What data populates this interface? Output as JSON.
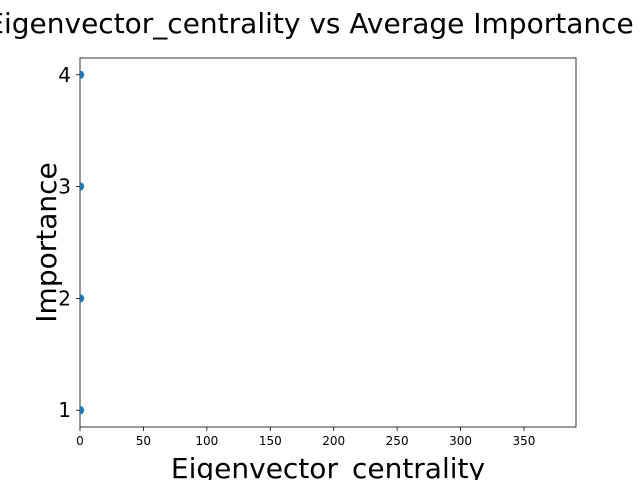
{
  "chart_data": {
    "type": "scatter",
    "title": "Eigenvector_centrality vs Average Importance",
    "xlabel": "Eigenvector_centrality",
    "ylabel": "Importance",
    "xlim": [
      0,
      391
    ],
    "ylim": [
      0.85,
      4.15
    ],
    "xticks": [
      0,
      50,
      100,
      150,
      200,
      250,
      300,
      350
    ],
    "yticks": [
      1,
      2,
      3,
      4
    ],
    "grid": false,
    "legend": "none",
    "marker_color": "#1f77b4",
    "points": [
      {
        "x": 0.0,
        "y": 4
      },
      {
        "x": 0.0,
        "y": 3
      },
      {
        "x": 0.0,
        "y": 2
      },
      {
        "x": 0.0,
        "y": 1
      }
    ]
  }
}
